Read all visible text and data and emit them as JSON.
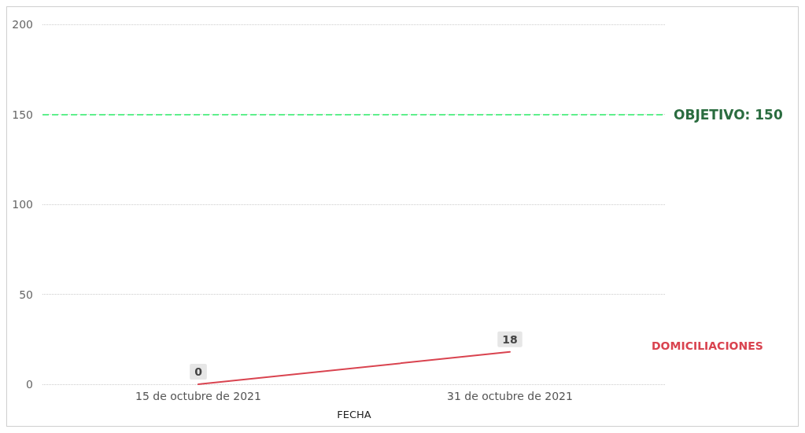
{
  "chart_data": {
    "type": "line",
    "xlabel": "FECHA",
    "categories": [
      "15 de octubre de 2021",
      "31 de octubre de 2021"
    ],
    "series": [
      {
        "name": "DOMICILIACIONES",
        "color": "#d9434f",
        "values": [
          0,
          18
        ]
      }
    ],
    "ylim": [
      0,
      200
    ],
    "yticks": [
      0,
      50,
      100,
      150,
      200
    ],
    "grid": "y",
    "data_labels": true,
    "marker": "none",
    "line_style": "solid",
    "ref_lines": [
      {
        "axis": "y",
        "value": 150,
        "label": "OBJETIVO: 150",
        "color": "#5ef08c",
        "line_style": "dashed"
      }
    ]
  }
}
